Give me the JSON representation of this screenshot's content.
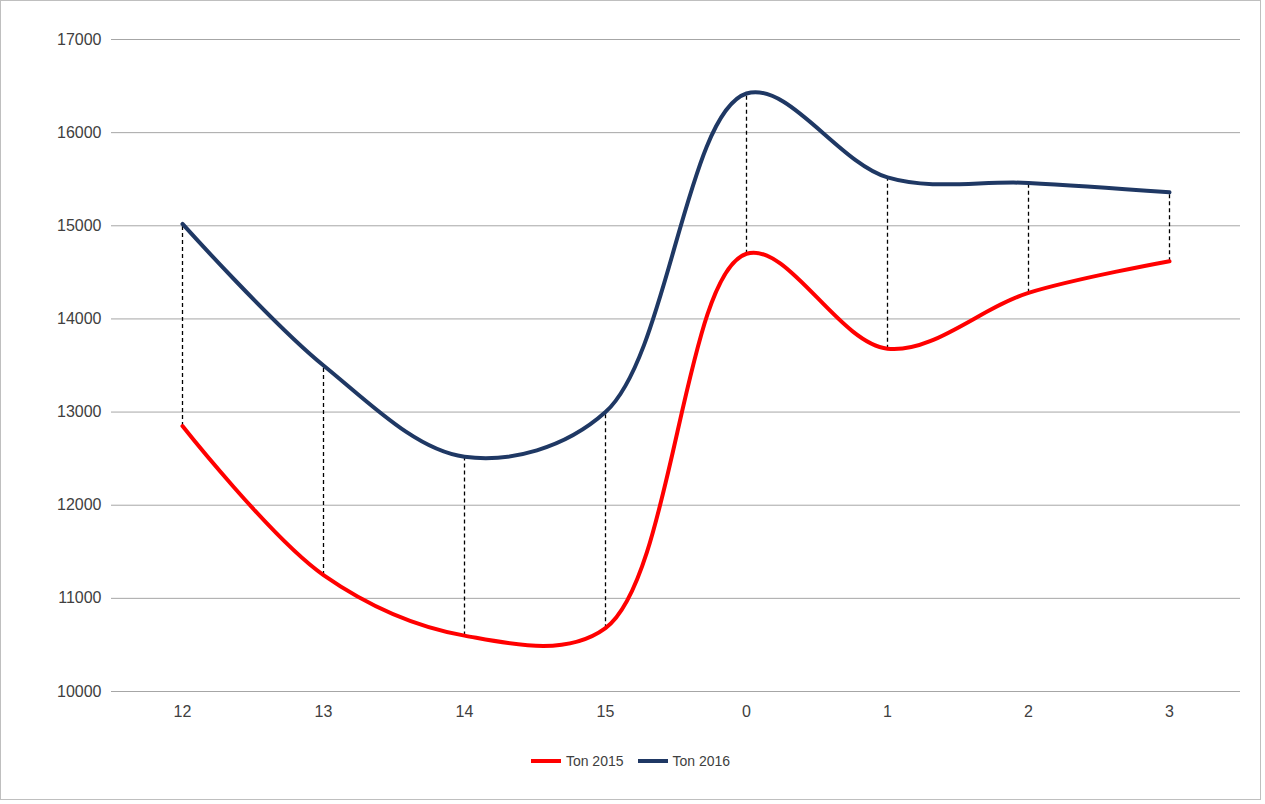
{
  "chart_data": {
    "type": "line",
    "categories": [
      "12",
      "13",
      "14",
      "15",
      "0",
      "1",
      "2",
      "3"
    ],
    "series": [
      {
        "name": "Ton 2015",
        "color": "#ff0000",
        "values": [
          12850,
          11250,
          10600,
          10680,
          14700,
          13680,
          14280,
          14620
        ]
      },
      {
        "name": "Ton 2016",
        "color": "#1f3864",
        "values": [
          15020,
          13500,
          12520,
          13000,
          16420,
          15520,
          15460,
          15360
        ]
      }
    ],
    "ylim": [
      10000,
      17000
    ],
    "yticks": [
      10000,
      11000,
      12000,
      13000,
      14000,
      15000,
      16000,
      17000
    ],
    "grid": true,
    "legend": "bottom"
  }
}
